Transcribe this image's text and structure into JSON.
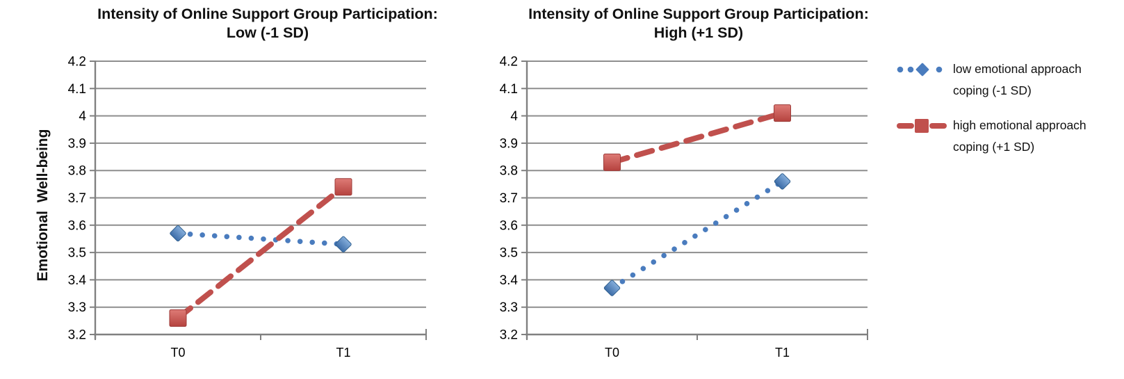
{
  "page": {
    "background": "#ffffff"
  },
  "colors": {
    "low_series": "#4A7CBE",
    "low_marker_light": "#85AEDB",
    "low_marker_dark": "#3D6DA8",
    "low_marker_stroke": "#30608F",
    "high_series": "#C0504D",
    "high_marker_light": "#DE7B76",
    "high_marker_dark": "#B5423E",
    "high_marker_stroke": "#9C3B38",
    "gridline": "#8E8E8E",
    "axis": "#808080",
    "text": "#000000"
  },
  "chart_data": [
    {
      "type": "line",
      "title_lines": [
        "Intensity of Online Support Group Participation:",
        "Low (-1 SD)"
      ],
      "categories": [
        "T0",
        "T1"
      ],
      "xlabel": "",
      "ylabel": "Emotional  Well-being",
      "ylim": [
        3.2,
        4.2
      ],
      "ytick_interval": 0.1,
      "ytick_labels": [
        "4.2",
        "4.1",
        "4",
        "3.9",
        "3.8",
        "3.7",
        "3.6",
        "3.5",
        "3.4",
        "3.3",
        "3.2"
      ],
      "grid": true,
      "series": [
        {
          "name": "low emotional approach coping (-1 SD)",
          "values": [
            3.57,
            3.53
          ],
          "style": "dotted",
          "marker": "diamond",
          "color_ref": "low_series"
        },
        {
          "name": "high emotional approach coping (+1 SD)",
          "values": [
            3.26,
            3.74
          ],
          "style": "dashed",
          "marker": "square",
          "color_ref": "high_series"
        }
      ]
    },
    {
      "type": "line",
      "title_lines": [
        "Intensity of Online Support Group Participation:",
        "High (+1 SD)"
      ],
      "categories": [
        "T0",
        "T1"
      ],
      "xlabel": "",
      "ylabel": "",
      "ylim": [
        3.2,
        4.2
      ],
      "ytick_interval": 0.1,
      "ytick_labels": [
        "4.2",
        "4.1",
        "4",
        "3.9",
        "3.8",
        "3.7",
        "3.6",
        "3.5",
        "3.4",
        "3.3",
        "3.2"
      ],
      "grid": true,
      "series": [
        {
          "name": "low emotional approach coping (-1 SD)",
          "values": [
            3.37,
            3.76
          ],
          "style": "dotted",
          "marker": "diamond",
          "color_ref": "low_series"
        },
        {
          "name": "high emotional approach coping (+1 SD)",
          "values": [
            3.83,
            4.01
          ],
          "style": "dashed",
          "marker": "square",
          "color_ref": "high_series"
        }
      ]
    }
  ],
  "legend": {
    "position": "right",
    "items": [
      {
        "lines": [
          "low emotional approach",
          "coping (-1 SD)"
        ],
        "marker": "diamond",
        "line_style": "dotted",
        "color_ref": "low_series"
      },
      {
        "lines": [
          "high emotional approach",
          "coping (+1 SD)"
        ],
        "marker": "square",
        "line_style": "dashed",
        "color_ref": "high_series"
      }
    ]
  }
}
